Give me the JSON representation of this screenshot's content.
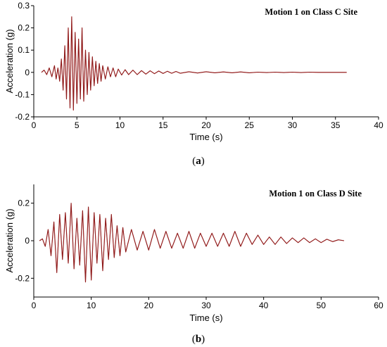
{
  "colors": {
    "trace": "#8B1A1A",
    "trace_highlight": "#FF2020"
  },
  "panels": [
    {
      "label_open": "(",
      "label_letter": "a",
      "label_close": ")"
    },
    {
      "label_open": "(",
      "label_letter": "b",
      "label_close": ")"
    }
  ],
  "chart_data": [
    {
      "type": "line",
      "title": "Motion 1 on Class C Site",
      "xlabel": "Time (s)",
      "ylabel": "Acceleration (g)",
      "xlim": [
        0,
        40
      ],
      "ylim": [
        -0.2,
        0.3
      ],
      "xticks": [
        0,
        5,
        10,
        15,
        20,
        25,
        30,
        35,
        40
      ],
      "yticks": [
        -0.2,
        -0.1,
        0,
        0.1,
        0.2,
        0.3
      ],
      "xtick_labels": [
        "0",
        "5",
        "10",
        "15",
        "20",
        "25",
        "30",
        "35",
        "40"
      ],
      "ytick_labels": [
        "-0.2",
        "-0.1",
        "0",
        "0.1",
        "0.2",
        "0.3"
      ],
      "grid": false,
      "series": [
        {
          "x": [
            0.9,
            1.2,
            1.5,
            1.8,
            2.1,
            2.4,
            2.6,
            2.8,
            3.0,
            3.2,
            3.4,
            3.6,
            3.8,
            4.0,
            4.2,
            4.4,
            4.6,
            4.8,
            5.0,
            5.2,
            5.4,
            5.6,
            5.8,
            6.0,
            6.2,
            6.4,
            6.6,
            6.8,
            7.0,
            7.2,
            7.4,
            7.6,
            7.8,
            8.0,
            8.3,
            8.6,
            8.9,
            9.2,
            9.5,
            9.8,
            10.2,
            10.6,
            11.0,
            11.5,
            12.0,
            12.5,
            13.0,
            13.5,
            14.0,
            14.5,
            15.0,
            15.5,
            16.0,
            16.5,
            17.0,
            18.0,
            19.0,
            20.0,
            21.0,
            22.0,
            23.0,
            24.0,
            25.0,
            26.0,
            27.0,
            28.0,
            29.0,
            30.0,
            31.0,
            32.0,
            33.0,
            34.0,
            35.0,
            36.3
          ],
          "y": [
            0.0,
            0.01,
            -0.01,
            0.02,
            -0.02,
            0.03,
            -0.03,
            0.02,
            -0.04,
            0.06,
            -0.08,
            0.12,
            -0.12,
            0.2,
            -0.16,
            0.25,
            -0.17,
            0.18,
            -0.14,
            0.15,
            -0.12,
            0.2,
            -0.13,
            0.1,
            -0.1,
            0.09,
            -0.08,
            0.07,
            -0.06,
            0.05,
            -0.05,
            0.04,
            -0.04,
            0.03,
            -0.03,
            0.025,
            -0.02,
            0.02,
            -0.02,
            0.015,
            -0.012,
            0.012,
            -0.01,
            0.01,
            -0.01,
            0.008,
            -0.008,
            0.007,
            -0.006,
            0.006,
            -0.005,
            0.005,
            -0.004,
            0.004,
            -0.004,
            0.003,
            -0.003,
            0.003,
            -0.002,
            0.002,
            -0.002,
            0.002,
            -0.002,
            0.001,
            -0.001,
            0.001,
            -0.001,
            0.001,
            -0.001,
            0.001,
            0.0,
            0.0,
            0.0,
            0.0
          ]
        }
      ]
    },
    {
      "type": "line",
      "title": "Motion 1 on Class D Site",
      "xlabel": "Time (s)",
      "ylabel": "Acceleration (g)",
      "xlim": [
        0,
        60
      ],
      "ylim": [
        -0.3,
        0.3
      ],
      "xticks": [
        0,
        10,
        20,
        30,
        40,
        50,
        60
      ],
      "yticks": [
        -0.2,
        0,
        0.2
      ],
      "xtick_labels": [
        "0",
        "10",
        "20",
        "30",
        "40",
        "50",
        "60"
      ],
      "ytick_labels": [
        "-0.2",
        "0",
        "0.2"
      ],
      "grid": false,
      "series": [
        {
          "x": [
            1.0,
            1.5,
            2.0,
            2.5,
            3.0,
            3.5,
            4.0,
            4.5,
            5.0,
            5.5,
            6.0,
            6.5,
            7.0,
            7.5,
            8.0,
            8.5,
            9.0,
            9.5,
            10.0,
            10.5,
            11.0,
            11.5,
            12.0,
            12.5,
            13.0,
            13.5,
            14.0,
            14.5,
            15.0,
            15.5,
            16.0,
            17.0,
            18.0,
            19.0,
            20.0,
            21.0,
            22.0,
            23.0,
            24.0,
            25.0,
            26.0,
            27.0,
            28.0,
            29.0,
            30.0,
            31.0,
            32.0,
            33.0,
            34.0,
            35.0,
            36.0,
            37.0,
            38.0,
            39.0,
            40.0,
            41.0,
            42.0,
            43.0,
            44.0,
            45.0,
            46.0,
            47.0,
            48.0,
            49.0,
            50.0,
            51.0,
            52.0,
            53.0,
            54.0
          ],
          "y": [
            0.0,
            0.01,
            -0.03,
            0.06,
            -0.08,
            0.1,
            -0.17,
            0.14,
            -0.1,
            0.15,
            -0.12,
            0.2,
            -0.15,
            0.12,
            -0.13,
            0.16,
            -0.22,
            0.18,
            -0.21,
            0.15,
            -0.12,
            0.14,
            -0.16,
            0.12,
            -0.1,
            0.14,
            -0.09,
            0.08,
            -0.08,
            0.07,
            -0.06,
            0.06,
            -0.05,
            0.05,
            -0.05,
            0.06,
            -0.04,
            0.05,
            -0.04,
            0.04,
            -0.04,
            0.05,
            -0.04,
            0.04,
            -0.03,
            0.04,
            -0.03,
            0.04,
            -0.03,
            0.05,
            -0.03,
            0.04,
            -0.02,
            0.03,
            -0.02,
            0.02,
            -0.02,
            0.02,
            -0.015,
            0.015,
            -0.01,
            0.015,
            -0.01,
            0.01,
            -0.01,
            0.008,
            -0.005,
            0.005,
            0.0
          ]
        }
      ]
    }
  ]
}
